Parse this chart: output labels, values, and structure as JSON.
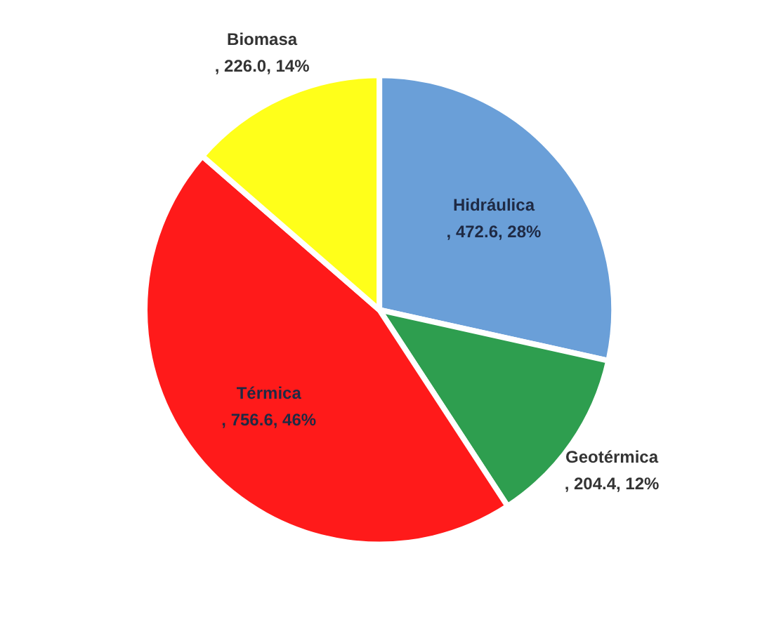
{
  "chart_data": {
    "type": "pie",
    "categories": [
      "Hidráulica",
      "Geotérmica",
      "Térmica",
      "Biomasa"
    ],
    "values": [
      472.6,
      204.4,
      756.6,
      226.0
    ],
    "colors": [
      "#6a9fd8",
      "#2e9e4f",
      "#ff1a1a",
      "#ffff1a"
    ],
    "value_labels": [
      ", 472.6, 28%",
      ", 204.4, 12%",
      ", 756.6, 46%",
      ", 226.0, 14%"
    ]
  }
}
